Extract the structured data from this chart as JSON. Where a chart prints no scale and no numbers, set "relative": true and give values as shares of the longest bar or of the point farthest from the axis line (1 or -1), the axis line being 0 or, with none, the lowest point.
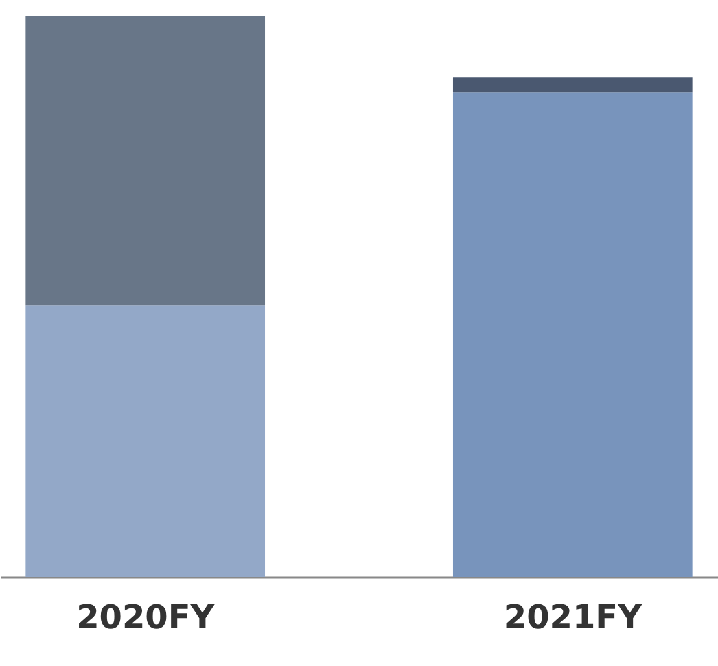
{
  "chart_data": {
    "type": "bar",
    "stacked": true,
    "relative": true,
    "categories": [
      "2020FY",
      "2021FY"
    ],
    "series": [
      {
        "colors": [
          "#93a8c8",
          "#7894bc"
        ],
        "values": [
          0.485,
          0.865
        ]
      },
      {
        "colors": [
          "#687688",
          "#4a5870"
        ],
        "values": [
          0.515,
          0.027
        ]
      }
    ]
  }
}
